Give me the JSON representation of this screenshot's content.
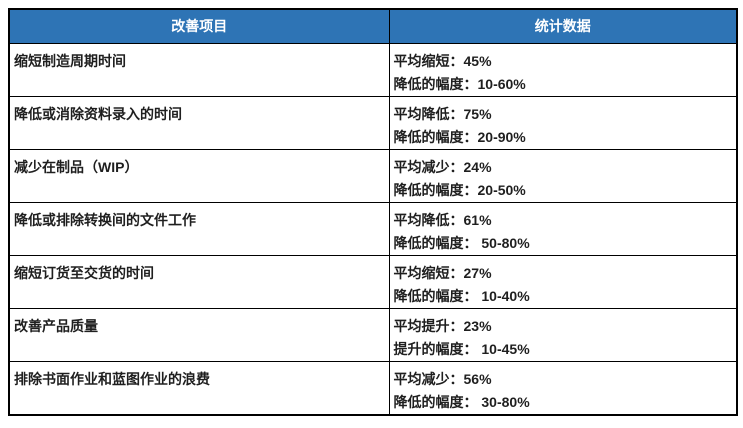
{
  "colors": {
    "header_bg": "#2E74B5",
    "header_text": "#FFFFFF",
    "body_text": "#1F1F1F",
    "border": "#000000",
    "background": "#FFFFFF"
  },
  "chart_data": {
    "type": "table",
    "columns": [
      "改善项目",
      "统计数据"
    ],
    "rows": [
      {
        "item": "缩短制造周期时间",
        "stat_line1": "平均缩短：45%",
        "stat_line2": "降低的幅度：10-60%"
      },
      {
        "item": "降低或消除资料录入的时间",
        "stat_line1": "平均降低：75%",
        "stat_line2": "降低的幅度：20-90%"
      },
      {
        "item": "减少在制品（WIP）",
        "stat_line1": "平均减少：24%",
        "stat_line2": "降低的幅度：20-50%"
      },
      {
        "item": "降低或排除转换间的文件工作",
        "stat_line1": "平均降低：61%",
        "stat_line2": "降低的幅度： 50-80%"
      },
      {
        "item": "缩短订货至交货的时间",
        "stat_line1": "平均缩短：27%",
        "stat_line2": "降低的幅度： 10-40%"
      },
      {
        "item": "改善产品质量",
        "stat_line1": "平均提升：23%",
        "stat_line2": "提升的幅度： 10-45%"
      },
      {
        "item": "排除书面作业和蓝图作业的浪费",
        "stat_line1": "平均减少：56%",
        "stat_line2": "降低的幅度： 30-80%"
      }
    ]
  }
}
